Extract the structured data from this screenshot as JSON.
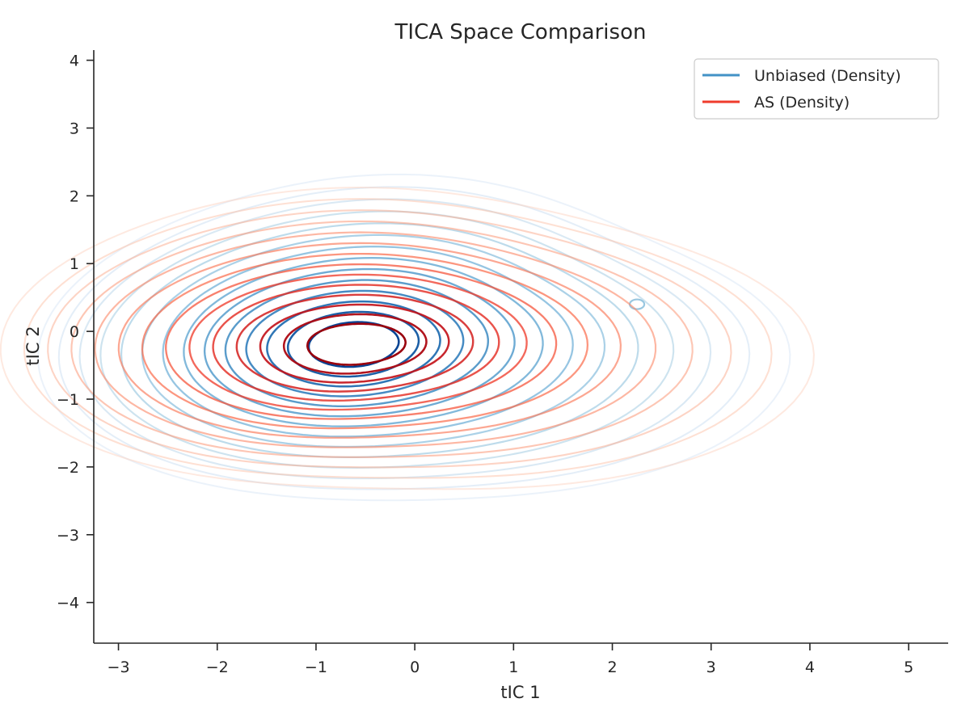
{
  "chart_data": {
    "type": "contour",
    "title": "TICA Space Comparison",
    "xlabel": "tIC 1",
    "ylabel": "tIC 2",
    "xlim": [
      -3.25,
      5.4
    ],
    "ylim": [
      -4.6,
      4.15
    ],
    "xticks": [
      "−3",
      "−2",
      "−1",
      "0",
      "1",
      "2",
      "3",
      "4",
      "5"
    ],
    "xtick_values": [
      -3,
      -2,
      -1,
      0,
      1,
      2,
      3,
      4,
      5
    ],
    "yticks": [
      "−4",
      "−3",
      "−2",
      "−1",
      "0",
      "1",
      "2",
      "3",
      "4"
    ],
    "ytick_values": [
      -4,
      -3,
      -2,
      -1,
      0,
      1,
      2,
      3,
      4
    ],
    "grid": false,
    "legend_position": "upper right",
    "colors": {
      "unbiased_legend": "#4292c6",
      "as_legend": "#ef3b2c"
    },
    "series": [
      {
        "name": "Unbiased (Density)",
        "colormap": "Blues",
        "peak": [
          -0.6,
          -0.2
        ],
        "secondary_peak": [
          2.25,
          0.4
        ],
        "levels": 14
      },
      {
        "name": "AS (Density)",
        "colormap": "Reds",
        "peak": [
          -0.55,
          -0.2
        ],
        "levels": 14
      }
    ]
  }
}
